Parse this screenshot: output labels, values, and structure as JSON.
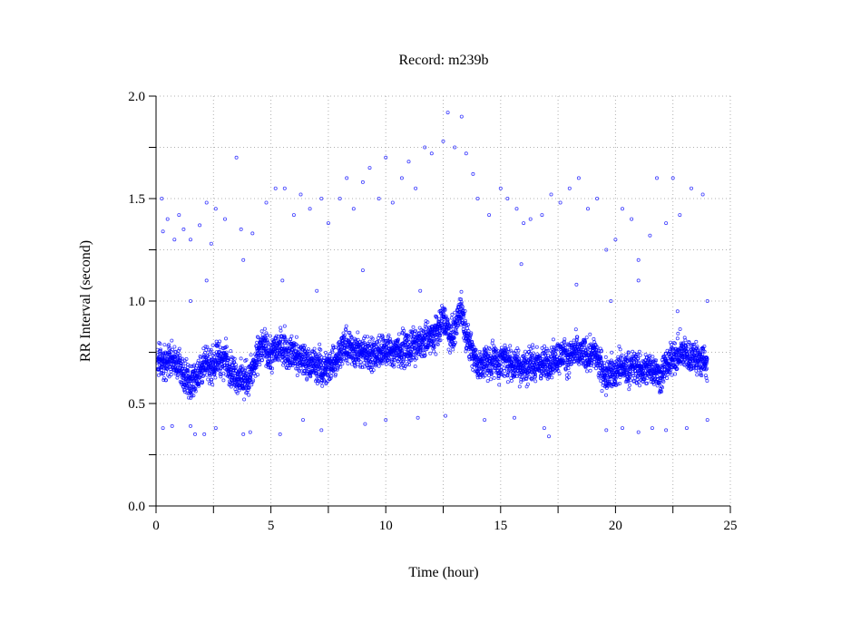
{
  "chart_data": {
    "type": "scatter",
    "title": "Record:  m239b",
    "xlabel": "Time (hour)",
    "ylabel": "RR Interval (second)",
    "xlim": [
      0,
      25
    ],
    "ylim": [
      0.0,
      2.0
    ],
    "xticks": [
      "0",
      "5",
      "10",
      "15",
      "20",
      "25"
    ],
    "yticks": [
      "0.0",
      "0.5",
      "1.0",
      "1.5",
      "2.0"
    ],
    "grid": true,
    "grid_style": "dotted",
    "marker": "open-circle",
    "color": "#0000ff",
    "band_trend": [
      [
        0.05,
        0.7
      ],
      [
        0.5,
        0.7
      ],
      [
        1.0,
        0.67
      ],
      [
        1.5,
        0.61
      ],
      [
        2.0,
        0.68
      ],
      [
        3.0,
        0.7
      ],
      [
        3.5,
        0.65
      ],
      [
        4.0,
        0.63
      ],
      [
        4.5,
        0.74
      ],
      [
        5.0,
        0.76
      ],
      [
        6.0,
        0.74
      ],
      [
        7.0,
        0.68
      ],
      [
        7.5,
        0.65
      ],
      [
        8.0,
        0.77
      ],
      [
        9.0,
        0.75
      ],
      [
        10.0,
        0.74
      ],
      [
        11.0,
        0.77
      ],
      [
        12.0,
        0.84
      ],
      [
        12.5,
        0.9
      ],
      [
        13.0,
        0.83
      ],
      [
        13.3,
        0.95
      ],
      [
        13.6,
        0.8
      ],
      [
        14.0,
        0.7
      ],
      [
        15.0,
        0.72
      ],
      [
        16.0,
        0.7
      ],
      [
        17.0,
        0.7
      ],
      [
        17.5,
        0.75
      ],
      [
        18.0,
        0.75
      ],
      [
        19.0,
        0.72
      ],
      [
        19.5,
        0.67
      ],
      [
        20.0,
        0.65
      ],
      [
        21.0,
        0.68
      ],
      [
        22.0,
        0.65
      ],
      [
        22.5,
        0.73
      ],
      [
        23.0,
        0.74
      ],
      [
        24.0,
        0.72
      ]
    ],
    "band_spread": 0.085,
    "band_points": 4500,
    "outliers": [
      [
        0.25,
        1.5
      ],
      [
        0.3,
        1.34
      ],
      [
        0.5,
        1.4
      ],
      [
        0.8,
        1.3
      ],
      [
        1.0,
        1.42
      ],
      [
        1.2,
        1.35
      ],
      [
        1.5,
        1.3
      ],
      [
        1.9,
        1.37
      ],
      [
        2.2,
        1.48
      ],
      [
        2.4,
        1.28
      ],
      [
        2.6,
        1.45
      ],
      [
        3.0,
        1.4
      ],
      [
        3.5,
        1.7
      ],
      [
        3.7,
        1.35
      ],
      [
        4.2,
        1.33
      ],
      [
        4.8,
        1.48
      ],
      [
        5.2,
        1.55
      ],
      [
        5.6,
        1.55
      ],
      [
        6.0,
        1.42
      ],
      [
        6.3,
        1.52
      ],
      [
        6.7,
        1.45
      ],
      [
        7.2,
        1.5
      ],
      [
        7.5,
        1.38
      ],
      [
        8.0,
        1.5
      ],
      [
        8.3,
        1.6
      ],
      [
        8.6,
        1.45
      ],
      [
        9.0,
        1.58
      ],
      [
        9.3,
        1.65
      ],
      [
        9.7,
        1.5
      ],
      [
        10.0,
        1.7
      ],
      [
        10.3,
        1.48
      ],
      [
        10.7,
        1.6
      ],
      [
        11.0,
        1.68
      ],
      [
        11.3,
        1.55
      ],
      [
        11.7,
        1.75
      ],
      [
        12.0,
        1.72
      ],
      [
        12.5,
        1.78
      ],
      [
        12.7,
        1.92
      ],
      [
        13.0,
        1.75
      ],
      [
        13.3,
        1.9
      ],
      [
        13.5,
        1.72
      ],
      [
        13.8,
        1.62
      ],
      [
        14.0,
        1.5
      ],
      [
        14.5,
        1.42
      ],
      [
        15.0,
        1.55
      ],
      [
        15.3,
        1.5
      ],
      [
        15.7,
        1.45
      ],
      [
        16.0,
        1.38
      ],
      [
        16.3,
        1.4
      ],
      [
        16.8,
        1.42
      ],
      [
        17.2,
        1.52
      ],
      [
        17.6,
        1.48
      ],
      [
        18.0,
        1.55
      ],
      [
        18.4,
        1.6
      ],
      [
        18.8,
        1.45
      ],
      [
        19.2,
        1.5
      ],
      [
        19.6,
        1.25
      ],
      [
        20.0,
        1.3
      ],
      [
        20.3,
        1.45
      ],
      [
        20.7,
        1.4
      ],
      [
        21.0,
        1.2
      ],
      [
        21.5,
        1.32
      ],
      [
        21.8,
        1.6
      ],
      [
        22.2,
        1.38
      ],
      [
        22.5,
        1.6
      ],
      [
        22.8,
        1.42
      ],
      [
        23.3,
        1.55
      ],
      [
        23.8,
        1.52
      ],
      [
        1.5,
        1.0
      ],
      [
        2.2,
        1.1
      ],
      [
        3.8,
        1.2
      ],
      [
        5.5,
        1.1
      ],
      [
        7.0,
        1.05
      ],
      [
        9.0,
        1.15
      ],
      [
        11.5,
        1.05
      ],
      [
        15.9,
        1.18
      ],
      [
        18.3,
        1.08
      ],
      [
        19.8,
        1.0
      ],
      [
        21.0,
        1.1
      ],
      [
        22.7,
        0.95
      ],
      [
        24.0,
        1.0
      ],
      [
        0.3,
        0.38
      ],
      [
        0.7,
        0.39
      ],
      [
        1.5,
        0.39
      ],
      [
        1.7,
        0.35
      ],
      [
        2.1,
        0.35
      ],
      [
        2.6,
        0.38
      ],
      [
        3.8,
        0.35
      ],
      [
        4.1,
        0.36
      ],
      [
        5.4,
        0.35
      ],
      [
        6.4,
        0.42
      ],
      [
        7.2,
        0.37
      ],
      [
        9.1,
        0.4
      ],
      [
        10.0,
        0.42
      ],
      [
        11.4,
        0.43
      ],
      [
        12.6,
        0.44
      ],
      [
        14.3,
        0.42
      ],
      [
        15.6,
        0.43
      ],
      [
        16.9,
        0.38
      ],
      [
        17.1,
        0.34
      ],
      [
        19.6,
        0.37
      ],
      [
        20.3,
        0.38
      ],
      [
        21.0,
        0.36
      ],
      [
        21.6,
        0.38
      ],
      [
        22.2,
        0.37
      ],
      [
        23.1,
        0.38
      ],
      [
        24.0,
        0.42
      ]
    ]
  }
}
